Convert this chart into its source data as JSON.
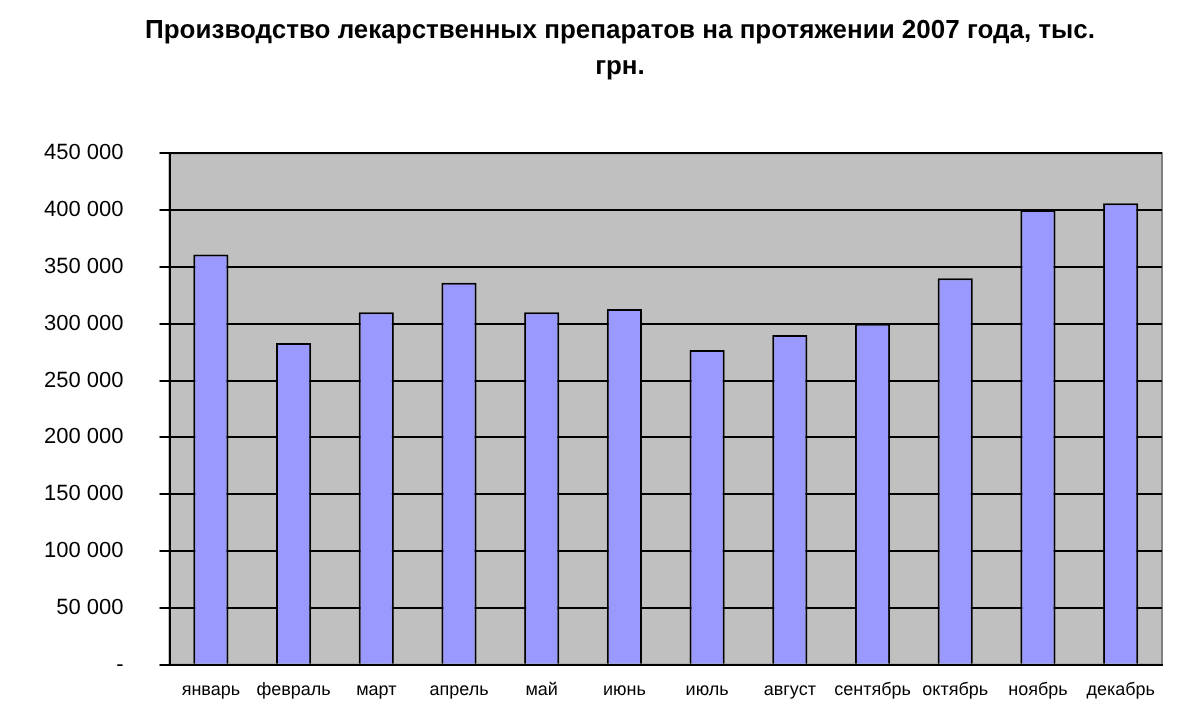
{
  "chart_data": {
    "type": "bar",
    "title": "Производство лекарственных препаратов на протяжении 2007 года, тыс. грн.",
    "categories": [
      "январь",
      "февраль",
      "март",
      "апрель",
      "май",
      "июнь",
      "июль",
      "август",
      "сентябрь",
      "октябрь",
      "ноябрь",
      "декабрь"
    ],
    "values": [
      361000,
      283000,
      310000,
      336000,
      310000,
      313000,
      277000,
      290000,
      300000,
      340000,
      400000,
      406000
    ],
    "color": "#9999ff",
    "ylim": [
      0,
      450000
    ],
    "yticks": [
      {
        "value": 0,
        "label": "-"
      },
      {
        "value": 50000,
        "label": "50 000"
      },
      {
        "value": 100000,
        "label": "100 000"
      },
      {
        "value": 150000,
        "label": "150 000"
      },
      {
        "value": 200000,
        "label": "200 000"
      },
      {
        "value": 250000,
        "label": "250 000"
      },
      {
        "value": 300000,
        "label": "300 000"
      },
      {
        "value": 350000,
        "label": "350 000"
      },
      {
        "value": 400000,
        "label": "400 000"
      },
      {
        "value": 450000,
        "label": "450 000"
      }
    ],
    "grid": "y",
    "legend": false
  }
}
